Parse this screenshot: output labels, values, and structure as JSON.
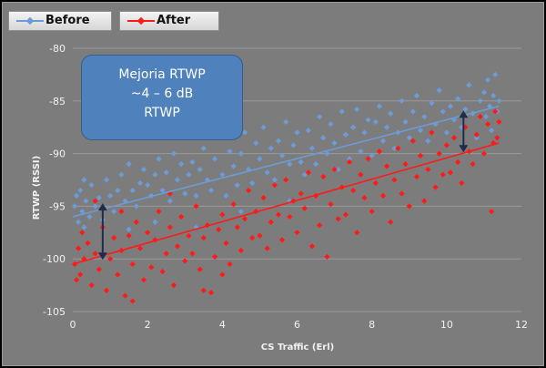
{
  "chart_data": {
    "type": "scatter",
    "title": "",
    "xlabel": "CS Traffic  (Erl)",
    "ylabel": "RTWP (RSSI)",
    "xlim": [
      0,
      12
    ],
    "ylim": [
      -105,
      -80
    ],
    "xticks": [
      "0",
      "2",
      "4",
      "6",
      "8",
      "10",
      "12"
    ],
    "yticks": [
      "-80",
      "-85",
      "-90",
      "-95",
      "-100",
      "-105"
    ],
    "grid": true,
    "legend_position": "top-left",
    "series": [
      {
        "name": "Before",
        "color": "#6d9bd6",
        "trend": {
          "x": [
            0,
            11.4
          ],
          "y": [
            -96.0,
            -85.5
          ]
        },
        "points": [
          [
            0.05,
            -95.0
          ],
          [
            0.1,
            -94.0
          ],
          [
            0.15,
            -96.5
          ],
          [
            0.2,
            -93.5
          ],
          [
            0.25,
            -95.5
          ],
          [
            0.3,
            -97.0
          ],
          [
            0.35,
            -94.5
          ],
          [
            0.45,
            -96.0
          ],
          [
            0.5,
            -93.0
          ],
          [
            0.6,
            -95.0
          ],
          [
            0.7,
            -94.2
          ],
          [
            0.8,
            -96.3
          ],
          [
            0.9,
            -92.5
          ],
          [
            1.0,
            -94.0
          ],
          [
            1.1,
            -95.5
          ],
          [
            1.2,
            -93.5
          ],
          [
            1.3,
            -92.0
          ],
          [
            1.4,
            -94.5
          ],
          [
            1.5,
            -91.0
          ],
          [
            1.6,
            -93.5
          ],
          [
            1.7,
            -95.0
          ],
          [
            1.8,
            -92.8
          ],
          [
            1.9,
            -91.5
          ],
          [
            2.0,
            -93.0
          ],
          [
            2.1,
            -94.0
          ],
          [
            2.2,
            -92.0
          ],
          [
            2.3,
            -90.5
          ],
          [
            2.4,
            -93.5
          ],
          [
            2.5,
            -91.8
          ],
          [
            2.6,
            -94.5
          ],
          [
            2.7,
            -90.0
          ],
          [
            2.8,
            -92.5
          ],
          [
            2.9,
            -91.0
          ],
          [
            3.0,
            -93.8
          ],
          [
            3.1,
            -92.0
          ],
          [
            3.2,
            -90.8
          ],
          [
            3.3,
            -94.0
          ],
          [
            3.4,
            -91.5
          ],
          [
            3.5,
            -89.5
          ],
          [
            3.6,
            -92.5
          ],
          [
            3.7,
            -93.5
          ],
          [
            3.8,
            -90.5
          ],
          [
            3.9,
            -88.5
          ],
          [
            4.0,
            -92.0
          ],
          [
            4.1,
            -94.0
          ],
          [
            4.2,
            -89.8
          ],
          [
            4.3,
            -91.2
          ],
          [
            4.4,
            -93.0
          ],
          [
            4.5,
            -90.0
          ],
          [
            4.6,
            -88.0
          ],
          [
            4.7,
            -91.5
          ],
          [
            4.8,
            -92.8
          ],
          [
            4.9,
            -89.0
          ],
          [
            5.0,
            -90.5
          ],
          [
            5.1,
            -87.5
          ],
          [
            5.2,
            -91.8
          ],
          [
            5.3,
            -89.5
          ],
          [
            5.4,
            -92.5
          ],
          [
            5.5,
            -88.8
          ],
          [
            5.6,
            -90.2
          ],
          [
            5.7,
            -87.0
          ],
          [
            5.8,
            -91.0
          ],
          [
            5.9,
            -89.2
          ],
          [
            6.0,
            -88.0
          ],
          [
            6.1,
            -90.8
          ],
          [
            6.2,
            -92.0
          ],
          [
            6.3,
            -87.8
          ],
          [
            6.4,
            -89.5
          ],
          [
            6.5,
            -91.0
          ],
          [
            6.6,
            -86.5
          ],
          [
            6.7,
            -88.5
          ],
          [
            6.8,
            -90.0
          ],
          [
            6.9,
            -87.2
          ],
          [
            7.0,
            -89.0
          ],
          [
            7.1,
            -91.5
          ],
          [
            7.2,
            -86.0
          ],
          [
            7.3,
            -88.2
          ],
          [
            7.4,
            -90.5
          ],
          [
            7.5,
            -87.5
          ],
          [
            7.6,
            -85.8
          ],
          [
            7.7,
            -89.8
          ],
          [
            7.8,
            -88.0
          ],
          [
            7.9,
            -86.8
          ],
          [
            8.0,
            -90.2
          ],
          [
            8.1,
            -87.0
          ],
          [
            8.2,
            -85.5
          ],
          [
            8.3,
            -88.8
          ],
          [
            8.4,
            -87.5
          ],
          [
            8.5,
            -86.2
          ],
          [
            8.6,
            -89.5
          ],
          [
            8.7,
            -88.0
          ],
          [
            8.8,
            -85.0
          ],
          [
            8.9,
            -87.0
          ],
          [
            9.0,
            -88.5
          ],
          [
            9.1,
            -86.0
          ],
          [
            9.2,
            -84.5
          ],
          [
            9.3,
            -87.8
          ],
          [
            9.4,
            -86.5
          ],
          [
            9.5,
            -88.8
          ],
          [
            9.6,
            -85.2
          ],
          [
            9.7,
            -87.2
          ],
          [
            9.8,
            -84.0
          ],
          [
            9.9,
            -86.0
          ],
          [
            10.0,
            -88.0
          ],
          [
            10.1,
            -85.5
          ],
          [
            10.2,
            -86.8
          ],
          [
            10.3,
            -84.8
          ],
          [
            10.4,
            -87.5
          ],
          [
            10.5,
            -85.8
          ],
          [
            10.6,
            -83.5
          ],
          [
            10.7,
            -86.2
          ],
          [
            10.8,
            -88.5
          ],
          [
            10.9,
            -85.0
          ],
          [
            11.0,
            -84.2
          ],
          [
            11.05,
            -86.5
          ],
          [
            11.1,
            -83.0
          ],
          [
            11.15,
            -85.5
          ],
          [
            11.2,
            -87.8
          ],
          [
            11.25,
            -84.5
          ],
          [
            11.3,
            -82.5
          ],
          [
            11.35,
            -86.0
          ],
          [
            11.4,
            -85.0
          ],
          [
            2.2,
            -96.5
          ],
          [
            3.3,
            -97.0
          ],
          [
            4.5,
            -95.5
          ],
          [
            1.5,
            -97.2
          ],
          [
            5.8,
            -94.5
          ],
          [
            0.3,
            -92.5
          ]
        ]
      },
      {
        "name": "After",
        "color": "#ff1a1a",
        "trend": {
          "x": [
            0,
            11.4
          ],
          "y": [
            -100.5,
            -89.0
          ]
        },
        "points": [
          [
            0.05,
            -100.5
          ],
          [
            0.1,
            -102.0
          ],
          [
            0.15,
            -99.0
          ],
          [
            0.2,
            -101.5
          ],
          [
            0.25,
            -97.5
          ],
          [
            0.3,
            -100.0
          ],
          [
            0.4,
            -98.5
          ],
          [
            0.5,
            -102.5
          ],
          [
            0.6,
            -99.5
          ],
          [
            0.7,
            -101.0
          ],
          [
            0.8,
            -97.0
          ],
          [
            0.9,
            -103.0
          ],
          [
            1.0,
            -100.0
          ],
          [
            1.1,
            -98.0
          ],
          [
            1.2,
            -101.5
          ],
          [
            1.3,
            -99.2
          ],
          [
            1.4,
            -103.5
          ],
          [
            1.5,
            -97.8
          ],
          [
            1.6,
            -100.5
          ],
          [
            1.7,
            -96.5
          ],
          [
            1.8,
            -99.0
          ],
          [
            1.9,
            -102.0
          ],
          [
            2.0,
            -97.5
          ],
          [
            2.1,
            -100.8
          ],
          [
            2.2,
            -98.2
          ],
          [
            2.3,
            -95.5
          ],
          [
            2.4,
            -101.2
          ],
          [
            2.5,
            -99.5
          ],
          [
            2.6,
            -97.0
          ],
          [
            2.7,
            -102.5
          ],
          [
            2.8,
            -98.8
          ],
          [
            2.9,
            -96.0
          ],
          [
            3.0,
            -100.2
          ],
          [
            3.1,
            -97.8
          ],
          [
            3.2,
            -99.5
          ],
          [
            3.3,
            -95.0
          ],
          [
            3.4,
            -101.0
          ],
          [
            3.5,
            -98.0
          ],
          [
            3.6,
            -96.8
          ],
          [
            3.7,
            -103.2
          ],
          [
            3.8,
            -99.8
          ],
          [
            3.9,
            -97.2
          ],
          [
            4.0,
            -95.8
          ],
          [
            4.1,
            -98.5
          ],
          [
            4.2,
            -100.5
          ],
          [
            4.3,
            -94.8
          ],
          [
            4.4,
            -97.0
          ],
          [
            4.5,
            -99.2
          ],
          [
            4.6,
            -96.2
          ],
          [
            4.7,
            -93.5
          ],
          [
            4.8,
            -98.0
          ],
          [
            4.9,
            -95.5
          ],
          [
            5.0,
            -97.8
          ],
          [
            5.1,
            -94.2
          ],
          [
            5.2,
            -99.0
          ],
          [
            5.3,
            -96.5
          ],
          [
            5.4,
            -93.0
          ],
          [
            5.5,
            -95.8
          ],
          [
            5.6,
            -98.2
          ],
          [
            5.7,
            -92.5
          ],
          [
            5.8,
            -96.0
          ],
          [
            5.9,
            -94.5
          ],
          [
            6.0,
            -97.5
          ],
          [
            6.1,
            -93.8
          ],
          [
            6.2,
            -95.2
          ],
          [
            6.3,
            -91.8
          ],
          [
            6.4,
            -98.8
          ],
          [
            6.5,
            -94.0
          ],
          [
            6.6,
            -96.8
          ],
          [
            6.7,
            -92.2
          ],
          [
            6.8,
            -99.8
          ],
          [
            6.9,
            -94.8
          ],
          [
            7.0,
            -91.5
          ],
          [
            7.1,
            -96.2
          ],
          [
            7.2,
            -93.2
          ],
          [
            7.3,
            -95.8
          ],
          [
            7.4,
            -90.8
          ],
          [
            7.5,
            -93.5
          ],
          [
            7.6,
            -97.5
          ],
          [
            7.7,
            -92.0
          ],
          [
            7.8,
            -94.2
          ],
          [
            7.9,
            -90.5
          ],
          [
            8.0,
            -95.5
          ],
          [
            8.1,
            -92.8
          ],
          [
            8.2,
            -89.8
          ],
          [
            8.3,
            -94.0
          ],
          [
            8.4,
            -91.2
          ],
          [
            8.5,
            -96.5
          ],
          [
            8.6,
            -92.5
          ],
          [
            8.7,
            -89.5
          ],
          [
            8.8,
            -93.8
          ],
          [
            8.9,
            -91.0
          ],
          [
            9.0,
            -95.0
          ],
          [
            9.1,
            -88.8
          ],
          [
            9.2,
            -92.2
          ],
          [
            9.3,
            -90.2
          ],
          [
            9.4,
            -94.5
          ],
          [
            9.5,
            -91.5
          ],
          [
            9.6,
            -88.0
          ],
          [
            9.7,
            -93.2
          ],
          [
            9.8,
            -90.0
          ],
          [
            9.9,
            -92.0
          ],
          [
            10.0,
            -89.2
          ],
          [
            10.1,
            -91.8
          ],
          [
            10.2,
            -88.5
          ],
          [
            10.3,
            -90.8
          ],
          [
            10.4,
            -92.8
          ],
          [
            10.5,
            -87.5
          ],
          [
            10.6,
            -89.8
          ],
          [
            10.7,
            -91.0
          ],
          [
            10.8,
            -88.2
          ],
          [
            10.9,
            -86.5
          ],
          [
            11.0,
            -90.0
          ],
          [
            11.1,
            -87.2
          ],
          [
            11.2,
            -95.5
          ],
          [
            11.25,
            -89.0
          ],
          [
            11.3,
            -86.0
          ],
          [
            11.35,
            -88.5
          ],
          [
            11.4,
            -87.0
          ],
          [
            0.6,
            -94.5
          ],
          [
            1.3,
            -95.5
          ],
          [
            2.6,
            -93.8
          ],
          [
            3.5,
            -103.0
          ],
          [
            4.0,
            -101.5
          ],
          [
            1.6,
            -104.0
          ]
        ]
      }
    ],
    "annotations": [
      {
        "type": "double-arrow",
        "x": 0.8,
        "y_from": -94.8,
        "y_to": -100.0
      },
      {
        "type": "double-arrow",
        "x": 10.45,
        "y_from": -86.0,
        "y_to": -89.8
      }
    ],
    "callout": {
      "lines": [
        "Mejoria RTWP",
        "~4 – 6 dB",
        "RTWP"
      ],
      "fill": "#4f81bd"
    }
  }
}
